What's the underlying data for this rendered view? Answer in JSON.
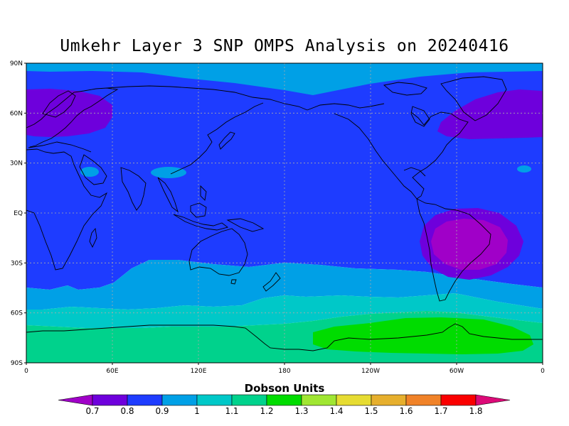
{
  "title": "Umkehr Layer 3 SNP OMPS Analysis on 20240416",
  "axes": {
    "lat_ticks": [
      {
        "value": 90,
        "label": "90N"
      },
      {
        "value": 60,
        "label": "60N"
      },
      {
        "value": 30,
        "label": "30N"
      },
      {
        "value": 0,
        "label": "EQ"
      },
      {
        "value": -30,
        "label": "30S"
      },
      {
        "value": -60,
        "label": "60S"
      },
      {
        "value": -90,
        "label": "90S"
      }
    ],
    "lon_ticks": [
      {
        "value": 0,
        "label": "0"
      },
      {
        "value": 60,
        "label": "60E"
      },
      {
        "value": 120,
        "label": "120E"
      },
      {
        "value": 180,
        "label": "180"
      },
      {
        "value": 240,
        "label": "120W"
      },
      {
        "value": 300,
        "label": "60W"
      },
      {
        "value": 360,
        "label": "0"
      }
    ],
    "grid": true
  },
  "colorbar": {
    "label": "Dobson Units",
    "levels": [
      0.7,
      0.8,
      0.9,
      1,
      1.1,
      1.2,
      1.3,
      1.4,
      1.5,
      1.6,
      1.7,
      1.8
    ],
    "level_labels": [
      "0.7",
      "0.8",
      "0.9",
      "1",
      "1.1",
      "1.2",
      "1.3",
      "1.4",
      "1.5",
      "1.6",
      "1.7",
      "1.8"
    ],
    "colors": [
      "#a000c8",
      "#6e00dc",
      "#1e3cff",
      "#00a0e6",
      "#00c8c8",
      "#00d28c",
      "#00dc00",
      "#a0e632",
      "#e6dc32",
      "#e6af2d",
      "#f08228",
      "#fa0000",
      "#dc0a78"
    ]
  },
  "map_colors": {
    "land_outline": "#000000",
    "grid_line": "#aaaaaa"
  }
}
